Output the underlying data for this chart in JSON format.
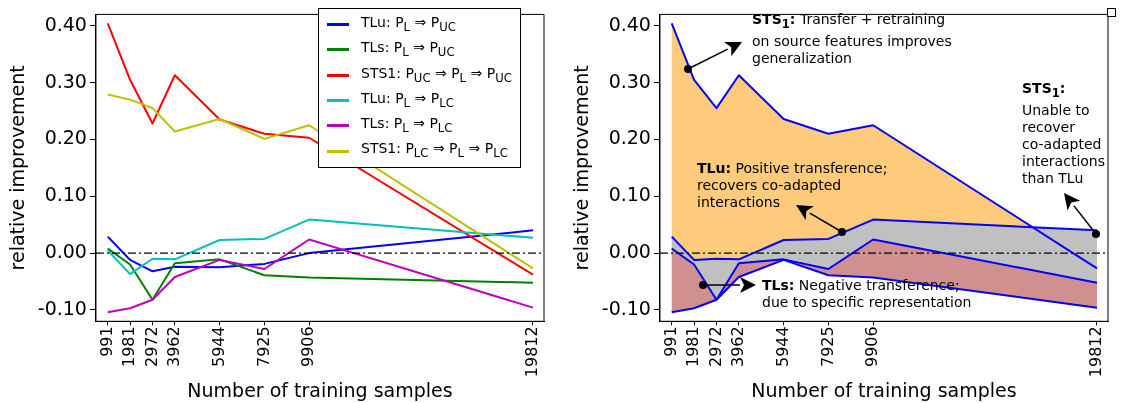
{
  "chart_data": [
    {
      "type": "line",
      "xlabel": "Number of training samples",
      "ylabel": "relative improvement",
      "x": [
        991,
        1981,
        2972,
        3962,
        5944,
        7925,
        9906,
        19812
      ],
      "xlim": [
        470,
        20300
      ],
      "xticks": [
        991,
        1981,
        2972,
        3962,
        5944,
        7925,
        9906,
        19812
      ],
      "ylim": [
        -0.12,
        0.42
      ],
      "yticks": [
        {
          "value": -0.1,
          "label": "-0.10"
        },
        {
          "value": 0,
          "label": "0.00"
        },
        {
          "value": 0.1,
          "label": "0.10"
        },
        {
          "value": 0.2,
          "label": "0.20"
        },
        {
          "value": 0.3,
          "label": "0.30"
        },
        {
          "value": 0.4,
          "label": "0.40"
        }
      ],
      "grid": false,
      "legend": "top right",
      "ref_lines": [
        {
          "axis": "y",
          "value": 0,
          "color": "#000000",
          "line_style": "dashed"
        }
      ],
      "series": [
        {
          "name": "TLu: P$_{L}$ ⇒ P$_{UC}$",
          "color": "#0000ff",
          "values": [
            0.029,
            -0.012,
            -0.032,
            -0.024,
            -0.025,
            -0.019,
            0.0,
            0.04
          ]
        },
        {
          "name": "TLs: P$_{L}$ ⇒ P$_{UC}$",
          "color": "#008000",
          "values": [
            0.008,
            -0.02,
            -0.082,
            -0.018,
            -0.011,
            -0.039,
            -0.043,
            -0.052
          ]
        },
        {
          "name": "STS1: P$_{UC}$ ⇒ P$_{L}$ ⇒ P$_{UC}$",
          "color": "#ff0000",
          "values": [
            0.404,
            0.305,
            0.228,
            0.313,
            0.235,
            0.21,
            0.203,
            -0.038
          ]
        },
        {
          "name": "TLu: P$_{L}$ ⇒ P$_{LC}$",
          "color": "#00bfbf",
          "values": [
            0.005,
            -0.037,
            -0.01,
            -0.011,
            0.023,
            0.025,
            0.059,
            0.027
          ]
        },
        {
          "name": "TLs: P$_{L}$ ⇒ P$_{LC}$",
          "color": "#bf00bf",
          "values": [
            -0.104,
            -0.097,
            -0.082,
            -0.042,
            -0.012,
            -0.028,
            0.024,
            -0.096
          ]
        },
        {
          "name": "STS1: P$_{LC}$ ⇒ P$_{L}$ ⇒ P$_{LC}$",
          "color": "#bfbf00",
          "values": [
            0.279,
            0.27,
            0.255,
            0.214,
            0.236,
            0.201,
            0.225,
            -0.027
          ]
        }
      ]
    },
    {
      "type": "area",
      "xlabel": "Number of training samples",
      "ylabel": "relative improvement",
      "x": [
        991,
        1981,
        2972,
        3962,
        5944,
        7925,
        9906,
        19812
      ],
      "xlim": [
        470,
        20300
      ],
      "xticks": [
        991,
        1981,
        2972,
        3962,
        5944,
        7925,
        9906,
        19812
      ],
      "ylim": [
        -0.12,
        0.42
      ],
      "yticks": [
        {
          "value": -0.1,
          "label": "-0.10"
        },
        {
          "value": 0,
          "label": "0.00"
        },
        {
          "value": 0.1,
          "label": "0.10"
        },
        {
          "value": 0.2,
          "label": "0.20"
        },
        {
          "value": 0.3,
          "label": "0.30"
        },
        {
          "value": 0.4,
          "label": "0.40"
        }
      ],
      "grid": false,
      "ref_lines": [
        {
          "axis": "y",
          "value": 0,
          "color": "#000000",
          "line_style": "dashed"
        }
      ],
      "annotations": [
        "STS$_{1}$: Transfer + retraining on source features improves generalization",
        "TLu: Positive transference; recovers co-adapted interactions",
        "TLs: Negative transference; due to specific representation",
        "STS$_{1}$: Unable to recover co-adapted interactions than TLu"
      ],
      "series": [
        {
          "type": "line",
          "color": "#0000ff",
          "values": [
            0.404,
            0.305,
            0.255,
            0.313,
            0.236,
            0.21,
            0.225,
            -0.027
          ],
          "upper": [
            0.404,
            0.305,
            0.255,
            0.313,
            0.236,
            0.21,
            0.225,
            -0.027
          ],
          "lower": [
            0.029,
            -0.012,
            -0.01,
            -0.011,
            0.023,
            0.025,
            0.059,
            0.04
          ]
        },
        {
          "type": "line",
          "color": "#0000ff",
          "values": [
            0.029,
            -0.012,
            -0.01,
            -0.011,
            0.023,
            0.025,
            0.059,
            0.04
          ],
          "upper": [
            0.029,
            -0.012,
            -0.01,
            -0.011,
            0.023,
            0.025,
            0.059,
            0.04
          ],
          "lower": [
            0.008,
            -0.02,
            -0.082,
            -0.018,
            -0.011,
            -0.028,
            0.024,
            -0.052
          ]
        },
        {
          "type": "line",
          "color": "#0000ff",
          "values": [
            0.008,
            -0.02,
            -0.082,
            -0.018,
            -0.011,
            -0.028,
            0.024,
            -0.052
          ],
          "upper": [
            0.008,
            -0.02,
            -0.082,
            -0.018,
            -0.011,
            -0.028,
            0.024,
            -0.052
          ],
          "lower": [
            -0.104,
            -0.097,
            -0.082,
            -0.042,
            -0.012,
            -0.039,
            -0.043,
            -0.096
          ]
        },
        {
          "type": "line",
          "color": "#0000ff",
          "values": [
            -0.104,
            -0.097,
            -0.082,
            -0.042,
            -0.012,
            -0.039,
            -0.043,
            -0.096
          ]
        }
      ]
    }
  ]
}
